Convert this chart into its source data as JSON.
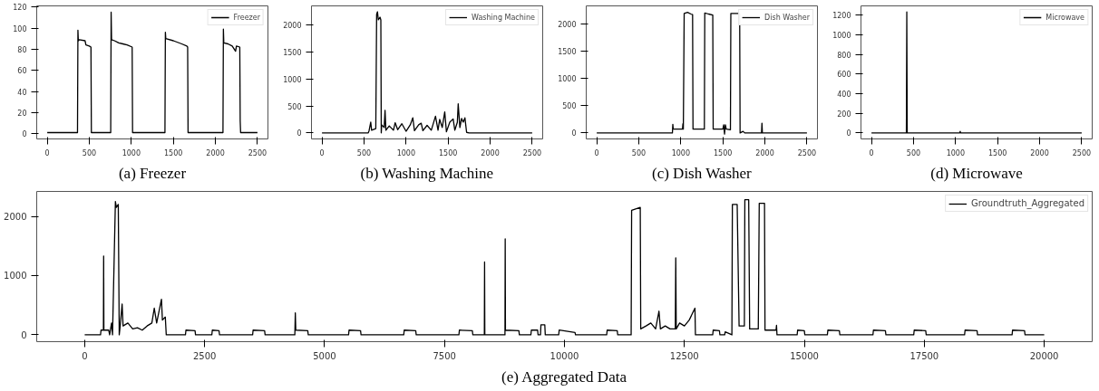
{
  "chart_data": [
    {
      "type": "line",
      "title": "(a) Freezer",
      "legend": "top right",
      "xlim": [
        -125,
        2625
      ],
      "ylim": [
        -5,
        121
      ],
      "xticks": [
        0,
        500,
        1000,
        1500,
        2000,
        2500
      ],
      "yticks": [
        0,
        20,
        40,
        60,
        80,
        100,
        120
      ],
      "x": [
        0,
        360,
        365,
        370,
        380,
        450,
        460,
        500,
        520,
        525,
        755,
        760,
        765,
        800,
        850,
        900,
        950,
        1010,
        1015,
        1400,
        1405,
        1410,
        1500,
        1600,
        1660,
        1670,
        1675,
        2090,
        2095,
        2100,
        2150,
        2200,
        2240,
        2250,
        2290,
        2295,
        2300,
        2500
      ],
      "series": [
        {
          "name": "Freezer",
          "color": "#000000",
          "values": [
            1,
            1,
            98,
            88,
            89,
            88,
            84,
            83,
            82,
            1,
            1,
            115,
            89,
            88,
            86,
            85,
            84,
            82,
            1,
            1,
            96,
            90,
            88,
            85,
            83,
            82,
            1,
            1,
            99,
            86,
            85,
            83,
            78,
            83,
            82,
            12,
            1,
            1
          ]
        }
      ]
    },
    {
      "type": "line",
      "title": "(b) Washing Machine",
      "legend": "top right",
      "xlim": [
        -125,
        2625
      ],
      "ylim": [
        -112,
        2360
      ],
      "xticks": [
        0,
        500,
        1000,
        1500,
        2000,
        2500
      ],
      "yticks": [
        0,
        500,
        1000,
        1500,
        2000
      ],
      "x": [
        0,
        550,
        560,
        580,
        590,
        640,
        650,
        660,
        670,
        690,
        700,
        705,
        710,
        740,
        750,
        760,
        800,
        850,
        870,
        900,
        950,
        1000,
        1050,
        1080,
        1100,
        1150,
        1180,
        1200,
        1250,
        1300,
        1350,
        1380,
        1400,
        1430,
        1460,
        1480,
        1520,
        1560,
        1580,
        1610,
        1620,
        1640,
        1660,
        1680,
        1700,
        1720,
        1750,
        2500
      ],
      "series": [
        {
          "name": "Washing Machine",
          "color": "#000000",
          "values": [
            0,
            0,
            40,
            200,
            50,
            80,
            2200,
            2250,
            2100,
            2150,
            2100,
            0,
            150,
            100,
            420,
            50,
            130,
            50,
            190,
            60,
            170,
            30,
            150,
            280,
            40,
            150,
            180,
            40,
            140,
            50,
            310,
            50,
            250,
            100,
            390,
            20,
            200,
            260,
            50,
            200,
            540,
            100,
            270,
            200,
            280,
            10,
            0,
            0
          ]
        }
      ]
    },
    {
      "type": "line",
      "title": "(c) Dish Washer",
      "legend": "top right",
      "xlim": [
        -125,
        2625
      ],
      "ylim": [
        -110,
        2340
      ],
      "xticks": [
        0,
        500,
        1000,
        1500,
        2000,
        2500
      ],
      "yticks": [
        0,
        500,
        1000,
        1500,
        2000
      ],
      "x": [
        0,
        900,
        905,
        910,
        1020,
        1025,
        1030,
        1040,
        1080,
        1120,
        1140,
        1145,
        1280,
        1285,
        1330,
        1380,
        1385,
        1500,
        1510,
        1520,
        1530,
        1540,
        1590,
        1595,
        1650,
        1700,
        1705,
        1740,
        1760,
        1960,
        1965,
        1970,
        2500
      ],
      "series": [
        {
          "name": "Dish Washer",
          "color": "#000000",
          "values": [
            0,
            0,
            160,
            70,
            70,
            170,
            70,
            2200,
            2220,
            2190,
            2180,
            70,
            70,
            2210,
            2190,
            2170,
            70,
            70,
            150,
            -20,
            150,
            70,
            60,
            2200,
            2200,
            2200,
            0,
            30,
            0,
            0,
            180,
            0,
            0
          ]
        }
      ]
    },
    {
      "type": "line",
      "title": "(d) Microwave",
      "legend": "top right",
      "xlim": [
        -125,
        2625
      ],
      "ylim": [
        -62,
        1297
      ],
      "xticks": [
        0,
        500,
        1000,
        1500,
        2000,
        2500
      ],
      "yticks": [
        0,
        200,
        400,
        600,
        800,
        1000,
        1200
      ],
      "x": [
        0,
        415,
        420,
        425,
        1050,
        1055,
        1060,
        2500
      ],
      "series": [
        {
          "name": "Microwave",
          "color": "#000000",
          "values": [
            0,
            0,
            1235,
            0,
            0,
            15,
            0,
            0
          ]
        }
      ]
    },
    {
      "type": "line",
      "title": "(e) Aggregated Data",
      "legend": "top right",
      "xlim": [
        -1000,
        21000
      ],
      "ylim": [
        -115,
        2420
      ],
      "xticks": [
        0,
        2500,
        5000,
        7500,
        10000,
        12500,
        15000,
        17500,
        20000
      ],
      "yticks": [
        0,
        1000,
        2000
      ],
      "x": [
        0,
        330,
        340,
        390,
        395,
        400,
        500,
        520,
        560,
        580,
        640,
        660,
        700,
        720,
        740,
        780,
        800,
        900,
        1000,
        1100,
        1200,
        1300,
        1400,
        1450,
        1500,
        1600,
        1620,
        1680,
        1700,
        2100,
        2110,
        2300,
        2310,
        2650,
        2660,
        2800,
        2810,
        3500,
        3510,
        3750,
        3760,
        4380,
        4390,
        4400,
        4650,
        4660,
        5500,
        5510,
        5750,
        5760,
        6650,
        6660,
        6900,
        6910,
        7800,
        7810,
        8080,
        8090,
        8330,
        8335,
        8340,
        8760,
        8765,
        8770,
        9050,
        9060,
        9300,
        9310,
        9440,
        9450,
        9500,
        9510,
        9590,
        9600,
        9880,
        9890,
        10220,
        10230,
        10880,
        10890,
        11100,
        11110,
        11390,
        11400,
        11580,
        11590,
        11700,
        11800,
        11900,
        11970,
        12000,
        12100,
        12200,
        12310,
        12320,
        12330,
        12400,
        12500,
        12600,
        12720,
        12730,
        12750,
        13090,
        13100,
        13230,
        13240,
        13340,
        13350,
        13490,
        13500,
        13600,
        13640,
        13750,
        13760,
        13840,
        13860,
        14040,
        14060,
        14170,
        14180,
        14410,
        14420,
        14430,
        14850,
        14860,
        15000,
        15010,
        15480,
        15490,
        15730,
        15740,
        16430,
        16440,
        16690,
        16700,
        17280,
        17290,
        17530,
        17540,
        18340,
        18350,
        18600,
        18610,
        19330,
        19340,
        19590,
        19600,
        20000
      ],
      "series": [
        {
          "name": "Groundtruth_Aggregated",
          "color": "#000000",
          "values": [
            0,
            0,
            80,
            80,
            1330,
            80,
            80,
            0,
            200,
            0,
            2250,
            2150,
            2200,
            0,
            150,
            520,
            150,
            200,
            100,
            120,
            80,
            150,
            200,
            450,
            200,
            600,
            250,
            300,
            0,
            0,
            80,
            70,
            0,
            0,
            80,
            70,
            0,
            0,
            80,
            70,
            0,
            0,
            370,
            80,
            70,
            0,
            0,
            80,
            70,
            0,
            0,
            80,
            70,
            0,
            0,
            80,
            70,
            0,
            0,
            1230,
            0,
            0,
            1620,
            80,
            70,
            0,
            0,
            80,
            80,
            0,
            0,
            170,
            170,
            0,
            0,
            80,
            40,
            0,
            0,
            80,
            70,
            0,
            0,
            2100,
            2150,
            100,
            150,
            200,
            100,
            400,
            100,
            150,
            100,
            100,
            1300,
            100,
            200,
            150,
            250,
            450,
            0,
            0,
            0,
            80,
            70,
            0,
            0,
            50,
            0,
            2200,
            2200,
            150,
            150,
            2280,
            2280,
            100,
            100,
            2220,
            2220,
            80,
            80,
            160,
            0,
            0,
            80,
            70,
            0,
            0,
            80,
            70,
            0,
            0,
            80,
            70,
            0,
            0,
            80,
            70,
            0,
            0,
            80,
            70,
            0,
            0,
            80,
            70,
            0,
            0
          ]
        }
      ]
    }
  ]
}
